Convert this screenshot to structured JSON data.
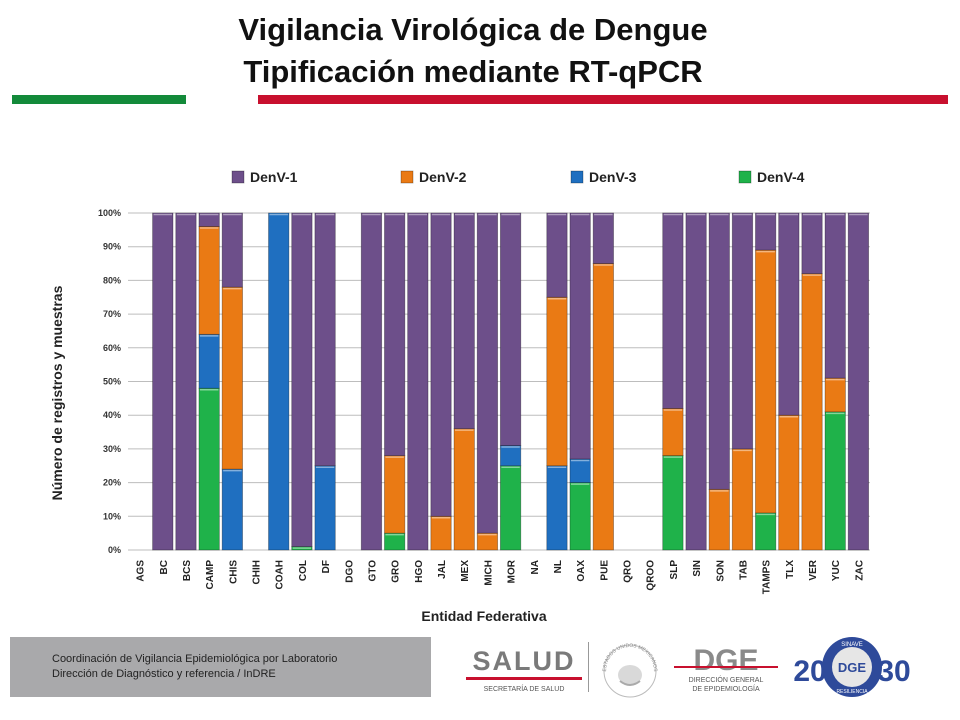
{
  "header": {
    "title_line1": "Vigilancia Virológica de Dengue",
    "title_line2": "Tipificación mediante RT-qPCR"
  },
  "colors": {
    "accent_green": "#138a3a",
    "accent_red": "#c8102e",
    "DenV-1": "#6d4f8a",
    "DenV-2": "#ea7a14",
    "DenV-3": "#1f6fc0",
    "DenV-4": "#1fb24a"
  },
  "chart_data": {
    "type": "bar",
    "stacked": true,
    "percent": true,
    "title": "",
    "xlabel": "Entidad Federativa",
    "ylabel": "Número de registros y muestras",
    "ylim": [
      0,
      100
    ],
    "yticks": [
      "0%",
      "10%",
      "20%",
      "30%",
      "40%",
      "50%",
      "60%",
      "70%",
      "80%",
      "90%",
      "100%"
    ],
    "legend_position": "top",
    "categories": [
      "AGS",
      "BC",
      "BCS",
      "CAMP",
      "CHIS",
      "CHIH",
      "COAH",
      "COL",
      "DF",
      "DGO",
      "GTO",
      "GRO",
      "HGO",
      "JAL",
      "MEX",
      "MICH",
      "MOR",
      "NA",
      "NL",
      "OAX",
      "PUE",
      "QRO",
      "QROO",
      "SLP",
      "SIN",
      "SON",
      "TAB",
      "TAMPS",
      "TLX",
      "VER",
      "YUC",
      "ZAC"
    ],
    "series": [
      {
        "name": "DenV-4",
        "values": [
          0,
          0,
          0,
          48,
          0,
          0,
          0,
          1,
          0,
          0,
          0,
          5,
          0,
          0,
          0,
          0,
          25,
          0,
          0,
          20,
          0,
          0,
          0,
          28,
          0,
          0,
          0,
          11,
          0,
          0,
          41,
          0
        ]
      },
      {
        "name": "DenV-3",
        "values": [
          0,
          0,
          0,
          16,
          24,
          0,
          100,
          0,
          25,
          0,
          0,
          0,
          0,
          0,
          0,
          0,
          6,
          0,
          25,
          7,
          0,
          0,
          0,
          0,
          0,
          0,
          0,
          0,
          0,
          0,
          0,
          0
        ]
      },
      {
        "name": "DenV-2",
        "values": [
          0,
          0,
          0,
          32,
          54,
          0,
          0,
          0,
          0,
          0,
          0,
          23,
          0,
          10,
          36,
          5,
          0,
          0,
          50,
          0,
          85,
          0,
          0,
          14,
          0,
          18,
          30,
          78,
          40,
          82,
          10,
          0
        ]
      },
      {
        "name": "DenV-1",
        "values": [
          0,
          100,
          100,
          4,
          22,
          0,
          0,
          99,
          75,
          0,
          100,
          72,
          100,
          90,
          64,
          95,
          69,
          0,
          25,
          73,
          15,
          0,
          0,
          58,
          100,
          82,
          70,
          11,
          60,
          18,
          49,
          100
        ]
      }
    ],
    "legend_order": [
      "DenV-1",
      "DenV-2",
      "DenV-3",
      "DenV-4"
    ]
  },
  "footer": {
    "line1": "Coordinación de Vigilancia Epidemiológica por Laboratorio",
    "line2": "Dirección de Diagnóstico  y referencia / InDRE"
  },
  "logos": {
    "salud_title": "SALUD",
    "salud_sub": "SECRETARÍA DE SALUD",
    "escudo_text": "ESTADOS UNIDOS MEXICANOS",
    "dge_title": "DGE",
    "dge_sub1": "DIRECCIÓN GENERAL",
    "dge_sub2": "DE EPIDEMIOLOGÍA",
    "sinave_left": "20",
    "sinave_right": "30",
    "sinave_top": "SINAVE",
    "sinave_bottom": "RESILIENCIA"
  }
}
